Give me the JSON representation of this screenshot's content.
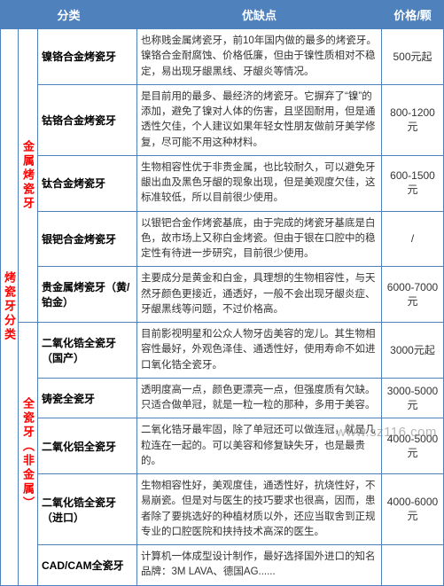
{
  "header": {
    "category": "分类",
    "features": "优缺点",
    "price": "价格/颗"
  },
  "cat1_label": "烤瓷牙分类",
  "group1": {
    "label": "金属烤瓷牙",
    "rows": [
      {
        "name": "镍铬合金烤瓷牙",
        "desc": "也称贱金属烤瓷牙，前10年国内做的最多的烤瓷牙。镍铬合金耐腐蚀、价格低廉，但由于镍性质相对不稳定，易出现牙龈黑线、牙龈炎等情况。",
        "price": "500元起"
      },
      {
        "name": "钴铬合金烤瓷牙",
        "desc": "是目前用的最多、最经济的烤瓷牙。它摒弃了“镍”的添加，避免了镍对人体的伤害，且坚固耐用，但是通透性欠佳，个人建议如果年轻女性朋友做前牙美学修复，尽可能不用这种材料。",
        "price": "800-1200元"
      },
      {
        "name": "钛合金烤瓷牙",
        "desc": "生物相容性优于非贵金属，也比较耐久，可以避免牙龈出血及黑色牙龈的现象出现，但是美观度欠佳，这标准较低，所以目前很少使用。",
        "price": "600-1500元"
      },
      {
        "name": "银钯合金烤瓷牙",
        "desc": "以银钯合金作烤瓷基底，由于完成的烤瓷牙基底是白色，故市场上又称白金烤瓷。但由于银在口腔中的稳定性有待进一步研究，目前很少使用。",
        "price": "/"
      },
      {
        "name": "贵金属烤瓷牙（黄/铂金）",
        "desc": "主要成分是黄金和白金，具理想的生物相容性，与天然牙颜色更接近，通透好，一般不会出现牙龈炎症、牙龈黑线等问题，不过价格高。",
        "price": "6000-7000元"
      }
    ]
  },
  "group2": {
    "label": "全瓷牙（非金属）",
    "rows": [
      {
        "name": "二氧化锆全瓷牙（国产）",
        "desc": "目前影视明星和公众人物牙齿美容的宠儿。其生物相容性最好，外观色泽佳、通透性好，使用寿命不如进口氧化锆全瓷牙。",
        "price": "3000元起"
      },
      {
        "name": "铸瓷全瓷牙",
        "desc": "透明度高一点，颜色更漂亮一点，但强度质有欠缺。只适合做单冠，就是一粒一粒的那种，多用于美容。",
        "price": "3000-5000元"
      },
      {
        "name": "二氧化铝全瓷牙",
        "desc": "二氧化锆牙最牢固，除了单冠还可以做连冠，就是几粒连在一起的。可以美容和修复缺失牙，也是最贵的。",
        "price": "4000-5000元"
      },
      {
        "name": "二氧化锆全瓷牙（进口）",
        "desc": "生物相容性好，美观度佳，通透性好，抗烧性好，不易崩瓷。但是对与医生的技巧要求也很高，因而，患者除了要挑选好的种植材质以外，还应当取舍到正规专业的口腔医院和挟持技术高深的医生。",
        "price": "4000-6000元"
      },
      {
        "name": "CAD/CAM全瓷牙",
        "desc": "计算机一体成型设计制作，最好选择国外进口的知名品牌：3M LAVA、德国AG......",
        "price": ""
      }
    ]
  },
  "watermark": "www.sz116.com"
}
